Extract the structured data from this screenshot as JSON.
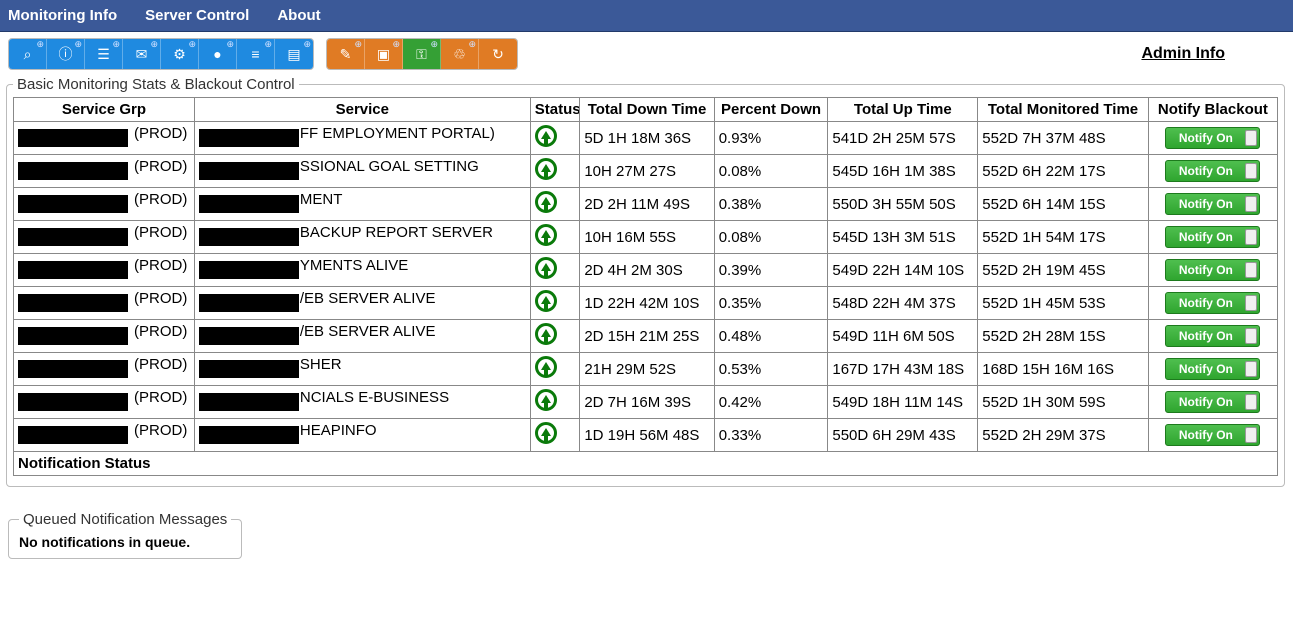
{
  "nav": {
    "monitoring": "Monitoring Info",
    "server": "Server Control",
    "about": "About"
  },
  "toolbar": {
    "group1": [
      {
        "name": "binoculars-icon",
        "glyph": "⌕",
        "badge": "⊕"
      },
      {
        "name": "info-icon",
        "glyph": "ⓘ",
        "badge": "⊕"
      },
      {
        "name": "document-icon",
        "glyph": "☰",
        "badge": "⊕"
      },
      {
        "name": "mail-icon",
        "glyph": "✉",
        "badge": "⊕"
      },
      {
        "name": "gear-icon",
        "glyph": "⚙",
        "badge": "⊕"
      },
      {
        "name": "globe-icon",
        "glyph": "●",
        "badge": "⊕"
      },
      {
        "name": "list-icon",
        "glyph": "≡",
        "badge": "⊕"
      },
      {
        "name": "chart-icon",
        "glyph": "▤",
        "badge": "⊕"
      }
    ],
    "group2": [
      {
        "name": "wrench-icon",
        "glyph": "✎",
        "badge": "⊕",
        "bg": "bg-orange"
      },
      {
        "name": "image-icon",
        "glyph": "▣",
        "badge": "⊕",
        "bg": "bg-orange"
      },
      {
        "name": "key-icon",
        "glyph": "⚿",
        "badge": "⊕",
        "bg": "bg-green"
      },
      {
        "name": "trash-icon",
        "glyph": "♲",
        "badge": "⊕",
        "bg": "bg-orange"
      },
      {
        "name": "refresh-icon",
        "glyph": "↻",
        "badge": "",
        "bg": "bg-orange"
      }
    ]
  },
  "admin_info_label": "Admin Info",
  "panel_title": "Basic Monitoring Stats & Blackout Control",
  "columns": {
    "grp": "Service Grp",
    "svc": "Service",
    "status": "Status",
    "down": "Total Down Time",
    "pct": "Percent Down",
    "up": "Total Up Time",
    "mt": "Total Monitored Time",
    "notify": "Notify Blackout"
  },
  "notify_on_label": "Notify On",
  "rows": [
    {
      "grp_red_w": 110,
      "grp_suffix": " (PROD)",
      "svc_red_w": 100,
      "svc_suffix": "FF EMPLOYMENT PORTAL)",
      "down": "5D 1H 18M 36S",
      "pct": "0.93%",
      "up": "541D 2H 25M 57S",
      "mt": "552D 7H 37M 48S"
    },
    {
      "grp_red_w": 110,
      "grp_suffix": "(PROD)",
      "svc_red_w": 100,
      "svc_suffix": "SSIONAL GOAL SETTING",
      "down": "10H 27M 27S",
      "pct": "0.08%",
      "up": "545D 16H 1M 38S",
      "mt": "552D 6H 22M 17S"
    },
    {
      "grp_red_w": 110,
      "grp_suffix": " (PROD)",
      "svc_red_w": 100,
      "svc_suffix": "MENT",
      "down": "2D 2H 11M 49S",
      "pct": "0.38%",
      "up": "550D 3H 55M 50S",
      "mt": "552D 6H 14M 15S"
    },
    {
      "grp_red_w": 110,
      "grp_suffix": " (PROD)",
      "svc_red_w": 100,
      "svc_suffix": "BACKUP REPORT SERVER",
      "down": "10H 16M 55S",
      "pct": "0.08%",
      "up": "545D 13H 3M 51S",
      "mt": "552D 1H 54M 17S"
    },
    {
      "grp_red_w": 110,
      "grp_suffix": "(PROD)",
      "svc_red_w": 100,
      "svc_suffix": "YMENTS ALIVE",
      "down": "2D 4H 2M 30S",
      "pct": "0.39%",
      "up": "549D 22H 14M 10S",
      "mt": "552D 2H 19M 45S"
    },
    {
      "grp_red_w": 110,
      "grp_suffix": "(PROD)",
      "svc_red_w": 100,
      "svc_suffix": "/EB SERVER ALIVE",
      "down": "1D 22H 42M 10S",
      "pct": "0.35%",
      "up": "548D 22H 4M 37S",
      "mt": "552D 1H 45M 53S"
    },
    {
      "grp_red_w": 110,
      "grp_suffix": "(PROD)",
      "svc_red_w": 100,
      "svc_suffix": "/EB SERVER ALIVE",
      "down": "2D 15H 21M 25S",
      "pct": "0.48%",
      "up": "549D 11H 6M 50S",
      "mt": "552D 2H 28M 15S"
    },
    {
      "grp_red_w": 110,
      "grp_suffix": " (PROD)",
      "svc_red_w": 100,
      "svc_suffix": "SHER",
      "down": "21H 29M 52S",
      "pct": "0.53%",
      "up": "167D 17H 43M 18S",
      "mt": "168D 15H 16M 16S"
    },
    {
      "grp_red_w": 110,
      "grp_suffix": "(PROD)",
      "svc_red_w": 100,
      "svc_suffix": "NCIALS E-BUSINESS",
      "down": "2D 7H 16M 39S",
      "pct": "0.42%",
      "up": "549D 18H 11M 14S",
      "mt": "552D 1H 30M 59S"
    },
    {
      "grp_red_w": 110,
      "grp_suffix": " (PROD)",
      "svc_red_w": 100,
      "svc_suffix": "HEAPINFO",
      "down": "1D 19H 56M 48S",
      "pct": "0.33%",
      "up": "550D 6H 29M 43S",
      "mt": "552D 2H 29M 37S"
    }
  ],
  "notification_status_label": "Notification Status",
  "queue_title": "Queued Notification Messages",
  "queue_msg": "No notifications in queue."
}
